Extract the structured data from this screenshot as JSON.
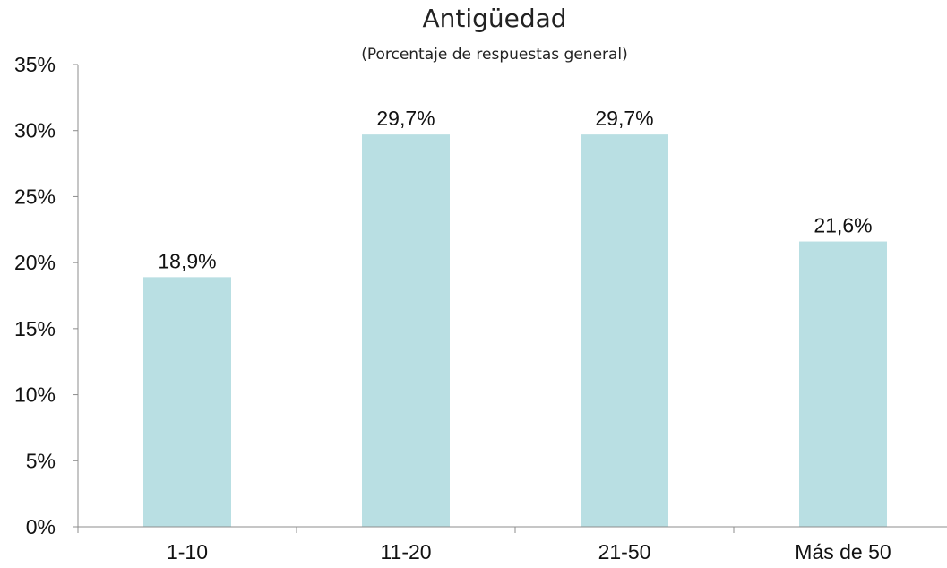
{
  "chart_data": {
    "type": "bar",
    "title": "Antigüedad",
    "subtitle": "(Porcentaje de respuestas general)",
    "categories": [
      "1-10",
      "11-20",
      "21-50",
      "Más de 50"
    ],
    "values": [
      18.9,
      29.7,
      29.7,
      21.6
    ],
    "data_labels": [
      "18,9%",
      "29,7%",
      "29,7%",
      "21,6%"
    ],
    "ylim": [
      0,
      35
    ],
    "yticks": [
      0,
      5,
      10,
      15,
      20,
      25,
      30,
      35
    ],
    "ytick_labels": [
      "0%",
      "5%",
      "10%",
      "15%",
      "20%",
      "25%",
      "30%",
      "35%"
    ],
    "xlabel": "",
    "ylabel": "",
    "grid": false,
    "legend": "none",
    "bar_color": "#b9dfe3",
    "axis_color": "#8c8c8c"
  }
}
